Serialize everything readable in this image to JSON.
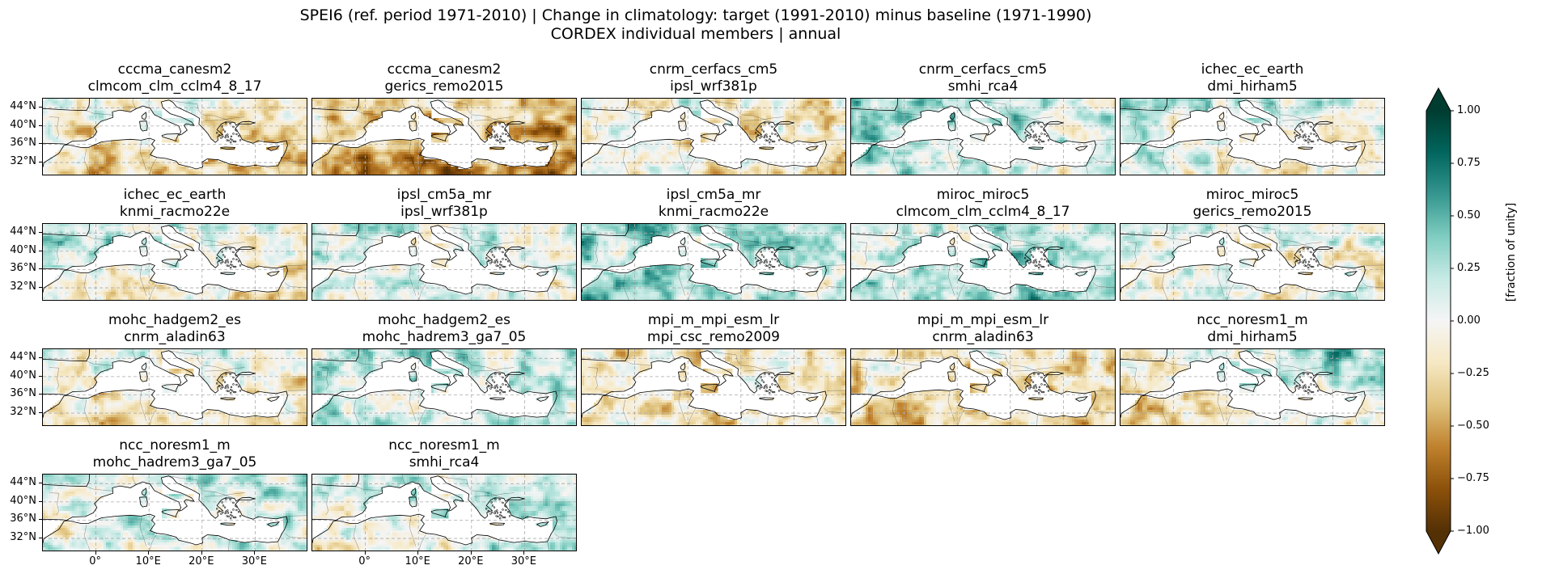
{
  "figure": {
    "title_line1": "SPEI6 (ref. period 1971-2010) | Change in climatology: target (1991-2010) minus baseline (1971-1990)",
    "title_line2": "CORDEX individual members | annual"
  },
  "y_tick_labels": [
    "44°N",
    "40°N",
    "36°N",
    "32°N"
  ],
  "x_tick_labels": [
    "0°",
    "10°E",
    "20°E",
    "30°E"
  ],
  "panels": [
    {
      "gcm": "cccma_canesm2",
      "rcm": "clmcom_clm_cclm4_8_17",
      "anomaly": {
        "west": -0.15,
        "east": -0.25,
        "north": -0.05,
        "south": -0.3
      }
    },
    {
      "gcm": "cccma_canesm2",
      "rcm": "gerics_remo2015",
      "anomaly": {
        "west": -0.35,
        "east": -0.55,
        "north": -0.15,
        "south": -0.55
      }
    },
    {
      "gcm": "cnrm_cerfacs_cm5",
      "rcm": "ipsl_wrf381p",
      "anomaly": {
        "west": -0.05,
        "east": -0.15,
        "north": -0.05,
        "south": -0.15
      }
    },
    {
      "gcm": "cnrm_cerfacs_cm5",
      "rcm": "smhi_rca4",
      "anomaly": {
        "west": 0.3,
        "east": 0.05,
        "north": 0.2,
        "south": 0.1
      }
    },
    {
      "gcm": "ichec_ec_earth",
      "rcm": "dmi_hirham5",
      "anomaly": {
        "west": 0.1,
        "east": -0.05,
        "north": 0.1,
        "south": -0.15
      }
    },
    {
      "gcm": "ichec_ec_earth",
      "rcm": "knmi_racmo22e",
      "anomaly": {
        "west": 0.2,
        "east": -0.15,
        "north": 0.05,
        "south": -0.3
      }
    },
    {
      "gcm": "ipsl_cm5a_mr",
      "rcm": "ipsl_wrf381p",
      "anomaly": {
        "west": 0.1,
        "east": 0.05,
        "north": 0.1,
        "south": -0.05
      }
    },
    {
      "gcm": "ipsl_cm5a_mr",
      "rcm": "knmi_racmo22e",
      "anomaly": {
        "west": 0.35,
        "east": 0.15,
        "north": 0.2,
        "south": 0.2
      }
    },
    {
      "gcm": "miroc_miroc5",
      "rcm": "clmcom_clm_cclm4_8_17",
      "anomaly": {
        "west": 0.15,
        "east": 0.35,
        "north": 0.05,
        "south": 0.2
      }
    },
    {
      "gcm": "miroc_miroc5",
      "rcm": "gerics_remo2015",
      "anomaly": {
        "west": 0.05,
        "east": -0.05,
        "north": 0.0,
        "south": -0.1
      }
    },
    {
      "gcm": "mohc_hadgem2_es",
      "rcm": "cnrm_aladin63",
      "anomaly": {
        "west": -0.15,
        "east": -0.15,
        "north": 0.05,
        "south": -0.25
      }
    },
    {
      "gcm": "mohc_hadgem2_es",
      "rcm": "mohc_hadrem3_ga7_05",
      "anomaly": {
        "west": 0.15,
        "east": 0.15,
        "north": 0.15,
        "south": 0.05
      }
    },
    {
      "gcm": "mpi_m_mpi_esm_lr",
      "rcm": "mpi_csc_remo2009",
      "anomaly": {
        "west": -0.2,
        "east": -0.1,
        "north": -0.1,
        "south": -0.15
      }
    },
    {
      "gcm": "mpi_m_mpi_esm_lr",
      "rcm": "cnrm_aladin63",
      "anomaly": {
        "west": -0.15,
        "east": -0.35,
        "north": 0.0,
        "south": -0.2
      }
    },
    {
      "gcm": "ncc_noresm1_m",
      "rcm": "dmi_hirham5",
      "anomaly": {
        "west": -0.15,
        "east": 0.2,
        "north": 0.1,
        "south": -0.3
      }
    },
    {
      "gcm": "ncc_noresm1_m",
      "rcm": "mohc_hadrem3_ga7_05",
      "anomaly": {
        "west": 0.05,
        "east": 0.2,
        "north": 0.1,
        "south": 0.0
      }
    },
    {
      "gcm": "ncc_noresm1_m",
      "rcm": "smhi_rca4",
      "anomaly": {
        "west": 0.0,
        "east": 0.15,
        "north": 0.1,
        "south": 0.0
      }
    }
  ],
  "colorbar": {
    "label": "[fraction of unity]",
    "min": -1.0,
    "max": 1.0,
    "ticks": [
      "1.00",
      "0.75",
      "0.50",
      "0.25",
      "0.00",
      "−0.25",
      "−0.50",
      "−0.75",
      "−1.00"
    ],
    "colormap": "BrBG",
    "colors": [
      "#543005",
      "#8c510a",
      "#bf812d",
      "#dfc27d",
      "#f6e8c3",
      "#f5f5f5",
      "#c7eae5",
      "#80cdc1",
      "#35978f",
      "#01665e",
      "#003c30"
    ]
  }
}
